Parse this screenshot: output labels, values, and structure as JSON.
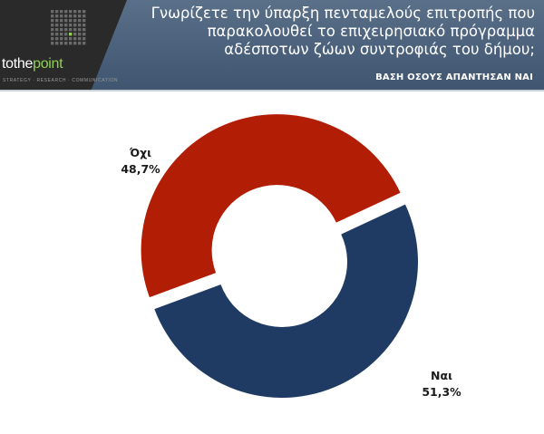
{
  "header": {
    "title_lines": [
      "Γνωρίζετε την ύπαρξη πενταμελούς επιτροπής που",
      "παρακολουθεί το επιχειρησιακό πρόγραμμα",
      "αδέσποτων ζώων συντροφιάς του δήμου;"
    ],
    "base_label": "ΒΑΣΗ ΟΣΟΥΣ ΑΠΑΝΤΗΣΑΝ ΝΑΙ",
    "logo": {
      "text_prefix": "tothe",
      "text_accent": "point",
      "tagline": "STRATEGY · RESEARCH · COMMUNICATION"
    },
    "colors": {
      "band": "#4a5f78",
      "logo_bg": "#2a2a2a",
      "accent": "#8fd14f"
    }
  },
  "chart_data": {
    "type": "pie",
    "variant": "donut",
    "categories": [
      "Ναι",
      "Όχι"
    ],
    "values": [
      51.3,
      48.7
    ],
    "value_labels": [
      "51,3%",
      "48,7%"
    ],
    "colors": [
      "#1f3b63",
      "#b21e05"
    ],
    "exploded": "Όχι"
  }
}
